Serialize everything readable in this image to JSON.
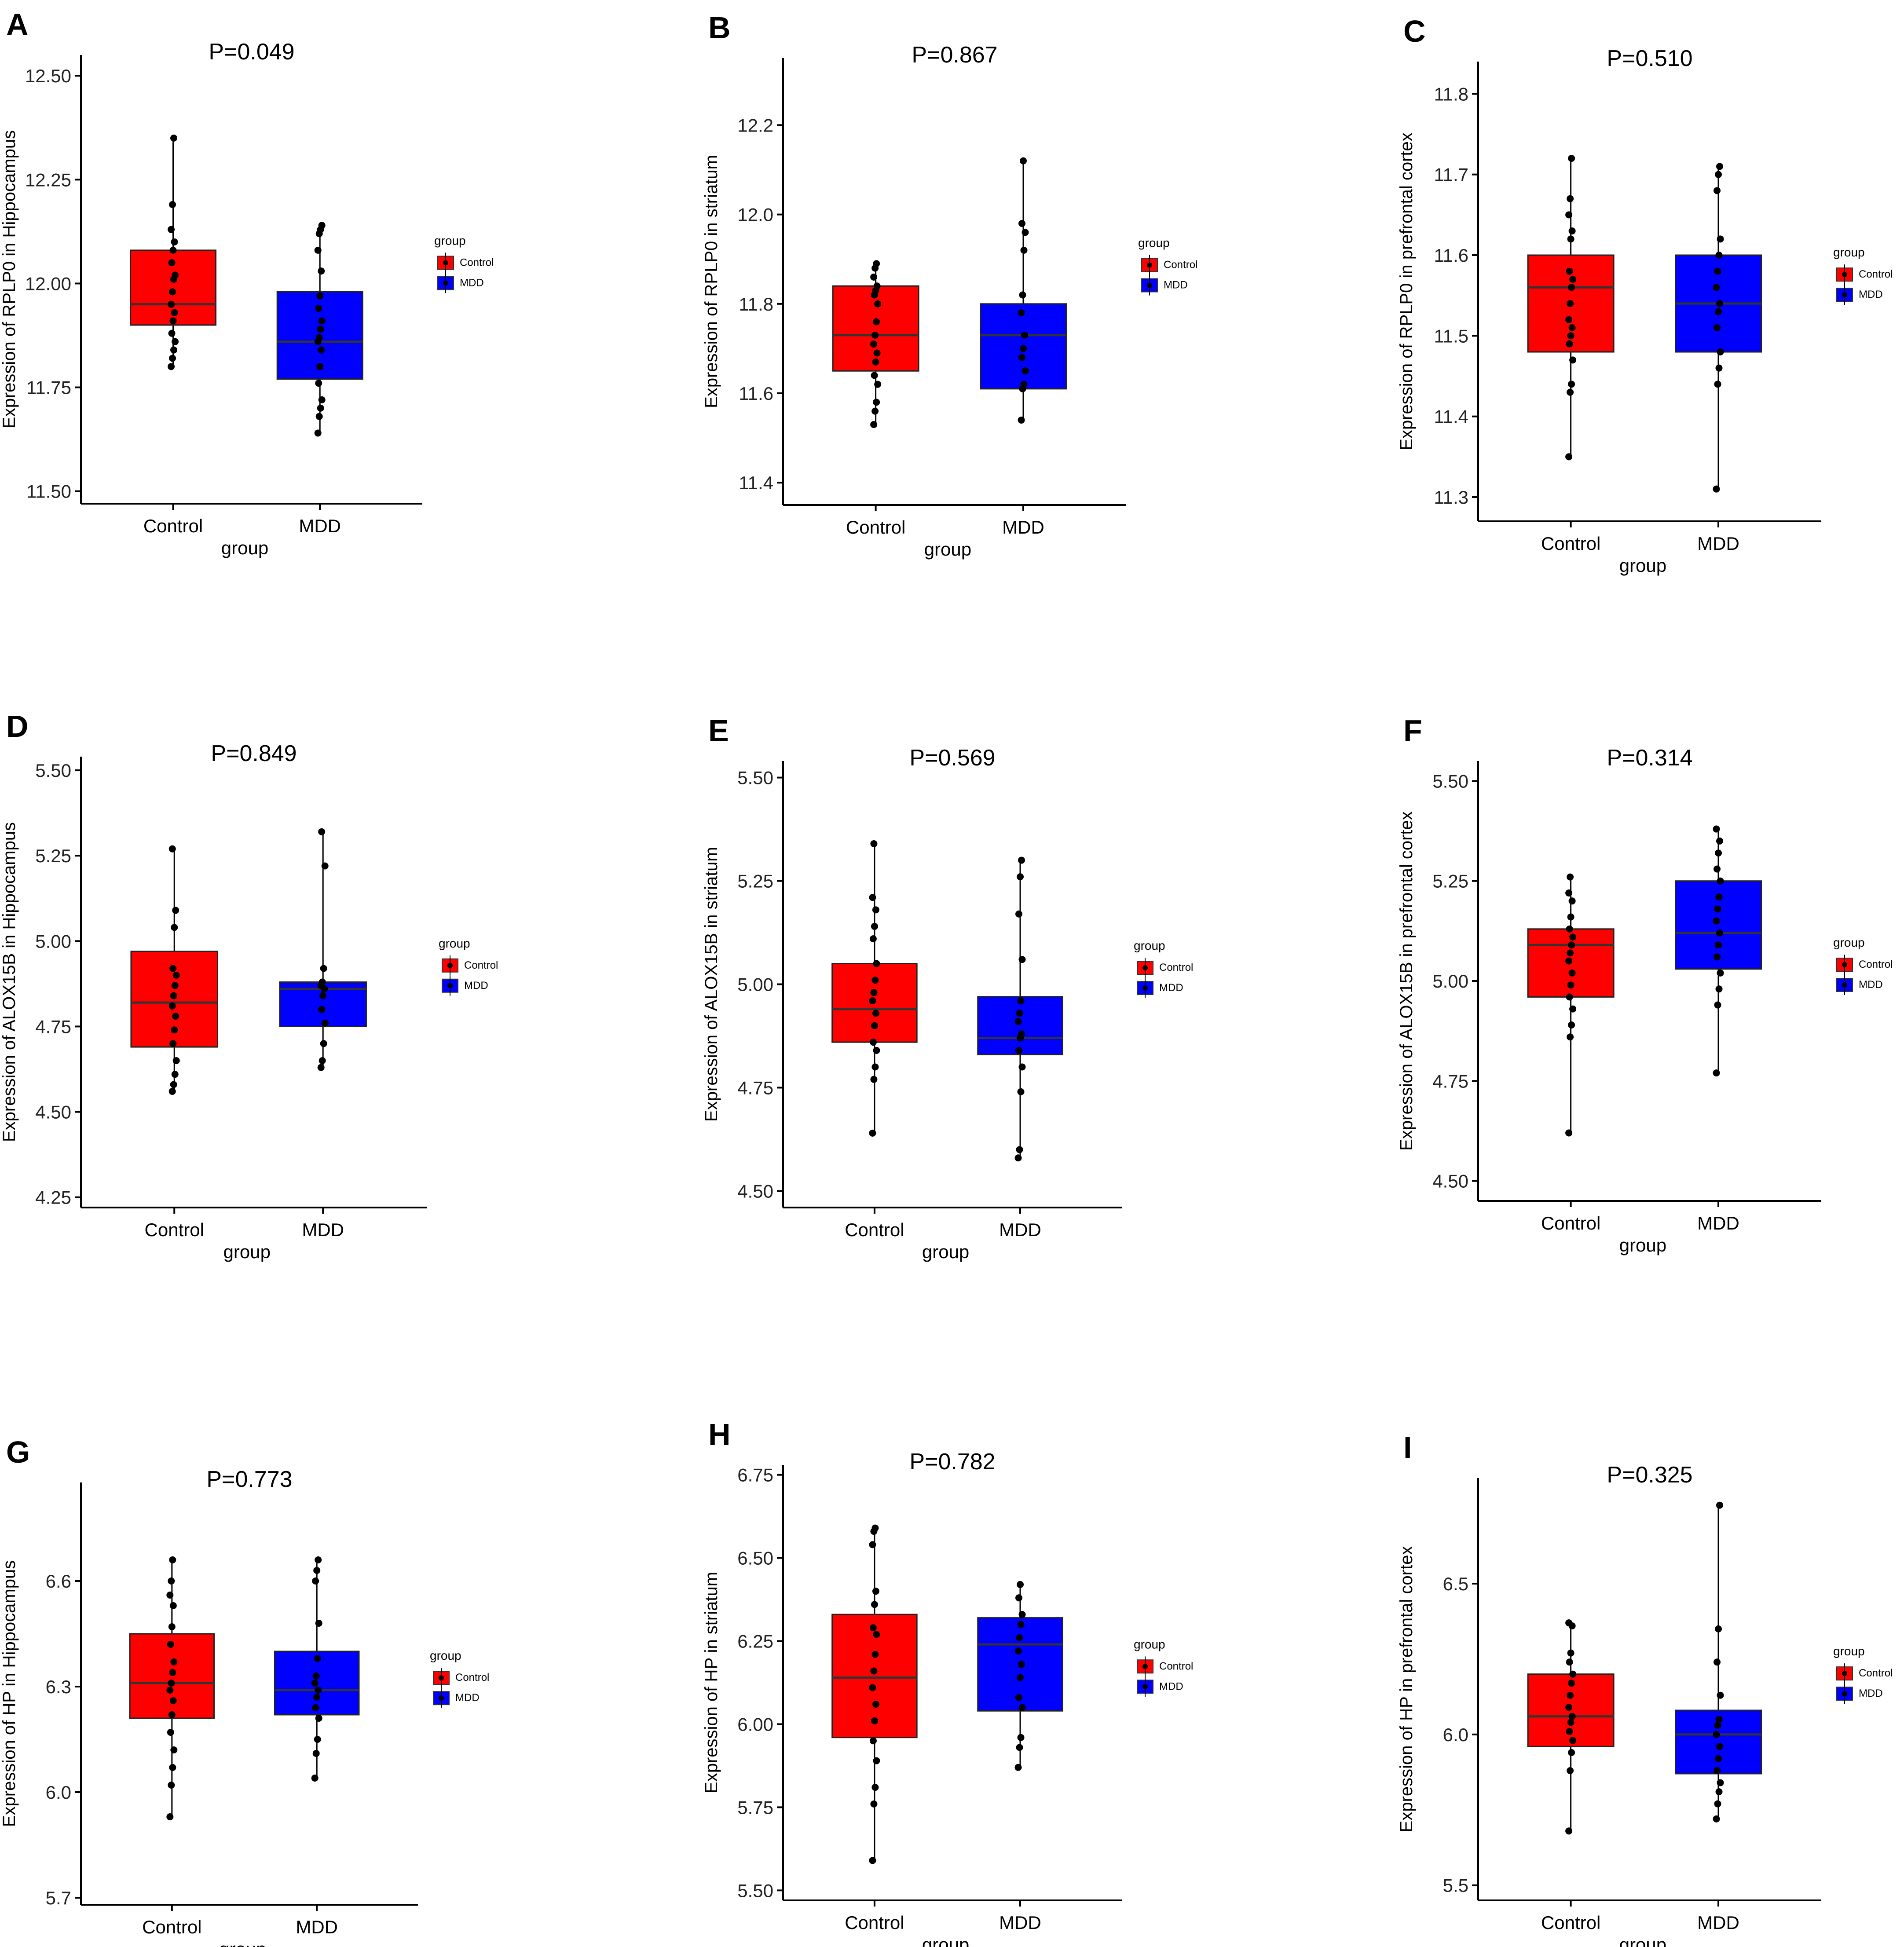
{
  "colors": {
    "control": "#ff0000",
    "mdd": "#0000ff",
    "axis": "#000000",
    "median": "#333333"
  },
  "legend": {
    "title": "group",
    "entries": [
      "Control",
      "MDD"
    ]
  },
  "chart_data": [
    {
      "id": "A",
      "type": "box",
      "title": "P=0.049",
      "xlabel": "group",
      "ylabel": "Expression of RPLP0 in Hippocampus",
      "categories": [
        "Control",
        "MDD"
      ],
      "ylim": [
        11.47,
        12.55
      ],
      "yticks": [
        11.5,
        11.75,
        12.0,
        12.25,
        12.5
      ],
      "ytick_labels": [
        "11.50",
        "11.75",
        "12.00",
        "12.25",
        "12.50"
      ],
      "boxes": [
        {
          "name": "Control",
          "q1": 11.9,
          "median": 11.95,
          "q3": 12.08,
          "whisker_low": 11.8,
          "whisker_high": 12.35,
          "points": [
            11.8,
            11.82,
            11.84,
            11.86,
            11.88,
            11.91,
            11.93,
            11.95,
            11.98,
            12.01,
            12.02,
            12.05,
            12.08,
            12.1,
            12.13,
            12.19,
            12.35
          ]
        },
        {
          "name": "MDD",
          "q1": 11.77,
          "median": 11.86,
          "q3": 11.98,
          "whisker_low": 11.64,
          "whisker_high": 12.14,
          "points": [
            11.64,
            11.68,
            11.7,
            11.72,
            11.76,
            11.8,
            11.84,
            11.86,
            11.87,
            11.89,
            11.91,
            11.94,
            11.97,
            12.03,
            12.08,
            12.12,
            12.13,
            12.14
          ]
        }
      ]
    },
    {
      "id": "B",
      "type": "box",
      "title": "P=0.867",
      "xlabel": "group",
      "ylabel": "Expression of RPLP0 in striatum",
      "categories": [
        "Control",
        "MDD"
      ],
      "ylim": [
        11.35,
        12.35
      ],
      "yticks": [
        11.4,
        11.6,
        11.8,
        12.0,
        12.2
      ],
      "ytick_labels": [
        "11.4",
        "11.6",
        "11.8",
        "12.0",
        "12.2"
      ],
      "boxes": [
        {
          "name": "Control",
          "q1": 11.65,
          "median": 11.73,
          "q3": 11.84,
          "whisker_low": 11.53,
          "whisker_high": 11.89,
          "points": [
            11.53,
            11.56,
            11.58,
            11.62,
            11.64,
            11.67,
            11.69,
            11.71,
            11.73,
            11.76,
            11.8,
            11.82,
            11.83,
            11.84,
            11.86,
            11.88,
            11.89
          ]
        },
        {
          "name": "MDD",
          "q1": 11.61,
          "median": 11.73,
          "q3": 11.8,
          "whisker_low": 11.54,
          "whisker_high": 12.12,
          "points": [
            11.54,
            11.61,
            11.62,
            11.65,
            11.68,
            11.7,
            11.73,
            11.78,
            11.82,
            11.92,
            11.96,
            11.98,
            12.12
          ]
        }
      ]
    },
    {
      "id": "C",
      "type": "box",
      "title": "P=0.510",
      "xlabel": "group",
      "ylabel": "Expression of RPLP0 in prefrontal cortex",
      "categories": [
        "Control",
        "MDD"
      ],
      "ylim": [
        11.27,
        11.84
      ],
      "yticks": [
        11.3,
        11.4,
        11.5,
        11.6,
        11.7,
        11.8
      ],
      "ytick_labels": [
        "11.3",
        "11.4",
        "11.5",
        "11.6",
        "11.7",
        "11.8"
      ],
      "boxes": [
        {
          "name": "Control",
          "q1": 11.48,
          "median": 11.56,
          "q3": 11.6,
          "whisker_low": 11.35,
          "whisker_high": 11.72,
          "points": [
            11.35,
            11.43,
            11.44,
            11.47,
            11.49,
            11.5,
            11.51,
            11.52,
            11.54,
            11.56,
            11.57,
            11.58,
            11.62,
            11.63,
            11.65,
            11.67,
            11.72
          ]
        },
        {
          "name": "MDD",
          "q1": 11.48,
          "median": 11.54,
          "q3": 11.6,
          "whisker_low": 11.31,
          "whisker_high": 11.71,
          "points": [
            11.31,
            11.44,
            11.46,
            11.48,
            11.51,
            11.53,
            11.54,
            11.56,
            11.58,
            11.6,
            11.62,
            11.68,
            11.7,
            11.71
          ]
        }
      ]
    },
    {
      "id": "D",
      "type": "box",
      "title": "P=0.849",
      "xlabel": "group",
      "ylabel": "Expression of ALOX15B in Hippocampus",
      "categories": [
        "Control",
        "MDD"
      ],
      "ylim": [
        4.22,
        5.54
      ],
      "yticks": [
        4.25,
        4.5,
        4.75,
        5.0,
        5.25,
        5.5
      ],
      "ytick_labels": [
        "4.25",
        "4.50",
        "4.75",
        "5.00",
        "5.25",
        "5.50"
      ],
      "boxes": [
        {
          "name": "Control",
          "q1": 4.69,
          "median": 4.82,
          "q3": 4.97,
          "whisker_low": 4.56,
          "whisker_high": 5.27,
          "points": [
            4.56,
            4.58,
            4.61,
            4.65,
            4.7,
            4.74,
            4.78,
            4.81,
            4.84,
            4.87,
            4.9,
            4.92,
            5.04,
            5.09,
            5.27
          ]
        },
        {
          "name": "MDD",
          "q1": 4.75,
          "median": 4.86,
          "q3": 4.88,
          "whisker_low": 4.63,
          "whisker_high": 5.32,
          "points": [
            4.63,
            4.65,
            4.7,
            4.76,
            4.8,
            4.84,
            4.86,
            4.87,
            4.88,
            4.92,
            5.22,
            5.32
          ]
        }
      ]
    },
    {
      "id": "E",
      "type": "box",
      "title": "P=0.569",
      "xlabel": "group",
      "ylabel": "Expression of ALOX15B in striatum",
      "categories": [
        "Control",
        "MDD"
      ],
      "ylim": [
        4.46,
        5.54
      ],
      "yticks": [
        4.5,
        4.75,
        5.0,
        5.25,
        5.5
      ],
      "ytick_labels": [
        "4.50",
        "4.75",
        "5.00",
        "5.25",
        "5.50"
      ],
      "boxes": [
        {
          "name": "Control",
          "q1": 4.86,
          "median": 4.94,
          "q3": 5.05,
          "whisker_low": 4.64,
          "whisker_high": 5.34,
          "points": [
            4.64,
            4.77,
            4.8,
            4.84,
            4.86,
            4.9,
            4.93,
            4.96,
            4.98,
            5.01,
            5.05,
            5.11,
            5.14,
            5.18,
            5.21,
            5.34
          ]
        },
        {
          "name": "MDD",
          "q1": 4.83,
          "median": 4.87,
          "q3": 4.97,
          "whisker_low": 4.58,
          "whisker_high": 5.3,
          "points": [
            4.58,
            4.6,
            4.74,
            4.8,
            4.84,
            4.87,
            4.88,
            4.91,
            4.93,
            4.96,
            5.06,
            5.17,
            5.26,
            5.3
          ]
        }
      ]
    },
    {
      "id": "F",
      "type": "box",
      "title": "P=0.314",
      "xlabel": "group",
      "ylabel": "Expression of ALOX15B in prefrontal cortex",
      "categories": [
        "Control",
        "MDD"
      ],
      "ylim": [
        4.45,
        5.55
      ],
      "yticks": [
        4.5,
        4.75,
        5.0,
        5.25,
        5.5
      ],
      "ytick_labels": [
        "4.50",
        "4.75",
        "5.00",
        "5.25",
        "5.50"
      ],
      "boxes": [
        {
          "name": "Control",
          "q1": 4.96,
          "median": 5.09,
          "q3": 5.13,
          "whisker_low": 4.62,
          "whisker_high": 5.26,
          "points": [
            4.62,
            4.86,
            4.89,
            4.93,
            4.96,
            4.99,
            5.02,
            5.05,
            5.07,
            5.09,
            5.11,
            5.13,
            5.16,
            5.2,
            5.22,
            5.26
          ]
        },
        {
          "name": "MDD",
          "q1": 5.03,
          "median": 5.12,
          "q3": 5.25,
          "whisker_low": 4.77,
          "whisker_high": 5.38,
          "points": [
            4.77,
            4.94,
            4.98,
            5.02,
            5.06,
            5.09,
            5.12,
            5.15,
            5.18,
            5.21,
            5.25,
            5.28,
            5.32,
            5.35,
            5.38
          ]
        }
      ]
    },
    {
      "id": "G",
      "type": "box",
      "title": "P=0.773",
      "xlabel": "group",
      "ylabel": "Expression of HP in Hippocampus",
      "categories": [
        "Control",
        "MDD"
      ],
      "ylim": [
        5.68,
        6.88
      ],
      "yticks": [
        5.7,
        6.0,
        6.3,
        6.6
      ],
      "ytick_labels": [
        "5.7",
        "6.0",
        "6.3",
        "6.6"
      ],
      "boxes": [
        {
          "name": "Control",
          "q1": 6.21,
          "median": 6.31,
          "q3": 6.45,
          "whisker_low": 5.93,
          "whisker_high": 6.66,
          "points": [
            5.93,
            6.02,
            6.07,
            6.12,
            6.17,
            6.22,
            6.26,
            6.29,
            6.31,
            6.34,
            6.37,
            6.42,
            6.47,
            6.53,
            6.56,
            6.6,
            6.66
          ]
        },
        {
          "name": "MDD",
          "q1": 6.22,
          "median": 6.29,
          "q3": 6.4,
          "whisker_low": 6.04,
          "whisker_high": 6.66,
          "points": [
            6.04,
            6.11,
            6.15,
            6.21,
            6.24,
            6.27,
            6.29,
            6.31,
            6.33,
            6.38,
            6.48,
            6.6,
            6.63,
            6.66
          ]
        }
      ]
    },
    {
      "id": "H",
      "type": "box",
      "title": "P=0.782",
      "xlabel": "group",
      "ylabel": "Expression of HP in striatum",
      "categories": [
        "Control",
        "MDD"
      ],
      "ylim": [
        5.47,
        6.78
      ],
      "yticks": [
        5.5,
        5.75,
        6.0,
        6.25,
        6.5,
        6.75
      ],
      "ytick_labels": [
        "5.50",
        "5.75",
        "6.00",
        "6.25",
        "6.50",
        "6.75"
      ],
      "boxes": [
        {
          "name": "Control",
          "q1": 5.96,
          "median": 6.14,
          "q3": 6.33,
          "whisker_low": 5.59,
          "whisker_high": 6.59,
          "points": [
            5.59,
            5.76,
            5.81,
            5.89,
            5.95,
            6.01,
            6.06,
            6.11,
            6.16,
            6.21,
            6.27,
            6.29,
            6.36,
            6.4,
            6.54,
            6.58,
            6.59
          ]
        },
        {
          "name": "MDD",
          "q1": 6.04,
          "median": 6.24,
          "q3": 6.32,
          "whisker_low": 5.87,
          "whisker_high": 6.42,
          "points": [
            5.87,
            5.93,
            5.96,
            6.05,
            6.08,
            6.14,
            6.18,
            6.22,
            6.26,
            6.3,
            6.33,
            6.38,
            6.42
          ]
        }
      ]
    },
    {
      "id": "I",
      "type": "box",
      "title": "P=0.325",
      "xlabel": "group",
      "ylabel": "Expression of HP in prefrontal cortex",
      "categories": [
        "Control",
        "MDD"
      ],
      "ylim": [
        5.45,
        6.85
      ],
      "yticks": [
        5.5,
        6.0,
        6.5
      ],
      "ytick_labels": [
        "5.5",
        "6.0",
        "6.5"
      ],
      "boxes": [
        {
          "name": "Control",
          "q1": 5.96,
          "median": 6.06,
          "q3": 6.2,
          "whisker_low": 5.68,
          "whisker_high": 6.37,
          "points": [
            5.68,
            5.88,
            5.94,
            5.98,
            6.01,
            6.04,
            6.06,
            6.09,
            6.13,
            6.17,
            6.2,
            6.24,
            6.27,
            6.36,
            6.37
          ]
        },
        {
          "name": "MDD",
          "q1": 5.87,
          "median": 6.0,
          "q3": 6.08,
          "whisker_low": 5.72,
          "whisker_high": 6.76,
          "points": [
            5.72,
            5.77,
            5.81,
            5.84,
            5.88,
            5.92,
            5.96,
            6.0,
            6.03,
            6.05,
            6.13,
            6.24,
            6.35,
            6.76
          ]
        }
      ]
    }
  ]
}
